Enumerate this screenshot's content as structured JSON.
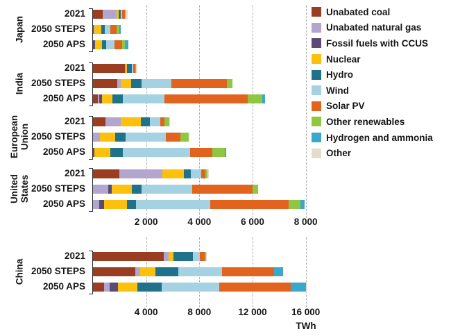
{
  "legend": {
    "items": [
      {
        "key": "coal",
        "label": "Unabated coal",
        "color": "#9b3d20"
      },
      {
        "key": "gas",
        "label": "Unabated natural gas",
        "color": "#b3a6ce"
      },
      {
        "key": "ccus",
        "label": "Fossil fuels with CCUS",
        "color": "#5b4a78"
      },
      {
        "key": "nuclear",
        "label": "Nuclear",
        "color": "#fcc00d"
      },
      {
        "key": "hydro",
        "label": "Hydro",
        "color": "#1f7289"
      },
      {
        "key": "wind",
        "label": "Wind",
        "color": "#a5d2e2"
      },
      {
        "key": "solar",
        "label": "Solar PV",
        "color": "#e2631e"
      },
      {
        "key": "other_renewables",
        "label": "Other renewables",
        "color": "#90c742"
      },
      {
        "key": "hydrogen",
        "label": "Hydrogen and ammonia",
        "color": "#3aa7cb"
      },
      {
        "key": "other",
        "label": "Other",
        "color": "#e2decb"
      }
    ]
  },
  "chart_data": {
    "type": "bar",
    "stacked": true,
    "orientation": "horizontal",
    "unit": "TWh",
    "series_order": [
      "coal",
      "gas",
      "ccus",
      "nuclear",
      "hydro",
      "wind",
      "solar",
      "other_renewables",
      "hydrogen",
      "other"
    ],
    "panels": [
      {
        "id": "top",
        "xlim": [
          0,
          8400
        ],
        "ticks": [
          2000,
          4000,
          6000,
          8000
        ],
        "tick_labels": [
          "2 000",
          "4 000",
          "6 000",
          "8 000"
        ],
        "grid": "dotted",
        "groups": [
          {
            "region": "Japan",
            "region_label": "Japan",
            "rows": [
              {
                "scenario": "2021",
                "values": {
                  "coal": 360,
                  "gas": 520,
                  "ccus": 0,
                  "nuclear": 80,
                  "hydro": 80,
                  "wind": 50,
                  "solar": 100,
                  "other_renewables": 50,
                  "hydrogen": 0,
                  "other": 60
                }
              },
              {
                "scenario": "2050 STEPS",
                "values": {
                  "coal": 30,
                  "gas": 30,
                  "ccus": 0,
                  "nuclear": 260,
                  "hydro": 130,
                  "wind": 210,
                  "solar": 230,
                  "other_renewables": 90,
                  "hydrogen": 60,
                  "other": 0
                }
              },
              {
                "scenario": "2050 APS",
                "values": {
                  "coal": 0,
                  "gas": 0,
                  "ccus": 80,
                  "nuclear": 260,
                  "hydro": 150,
                  "wind": 320,
                  "solar": 280,
                  "other_renewables": 120,
                  "hydrogen": 130,
                  "other": 0
                }
              }
            ]
          },
          {
            "region": "India",
            "region_label": "India",
            "rows": [
              {
                "scenario": "2021",
                "values": {
                  "coal": 1210,
                  "gas": 35,
                  "ccus": 0,
                  "nuclear": 45,
                  "hydro": 160,
                  "wind": 60,
                  "solar": 70,
                  "other_renewables": 40,
                  "hydrogen": 0,
                  "other": 50
                }
              },
              {
                "scenario": "2050 STEPS",
                "values": {
                  "coal": 920,
                  "gas": 130,
                  "ccus": 0,
                  "nuclear": 390,
                  "hydro": 390,
                  "wind": 1120,
                  "solar": 2090,
                  "other_renewables": 200,
                  "hydrogen": 0,
                  "other": 0
                }
              },
              {
                "scenario": "2050 APS",
                "values": {
                  "coal": 180,
                  "gas": 50,
                  "ccus": 100,
                  "nuclear": 390,
                  "hydro": 390,
                  "wind": 1570,
                  "solar": 3130,
                  "other_renewables": 560,
                  "hydrogen": 90,
                  "other": 0
                }
              }
            ]
          },
          {
            "region": "European Union",
            "region_label": "European\nUnion",
            "rows": [
              {
                "scenario": "2021",
                "values": {
                  "coal": 480,
                  "gas": 570,
                  "ccus": 0,
                  "nuclear": 740,
                  "hydro": 345,
                  "wind": 390,
                  "solar": 165,
                  "other_renewables": 180,
                  "hydrogen": 0,
                  "other": 40
                }
              },
              {
                "scenario": "2050 STEPS",
                "values": {
                  "coal": 0,
                  "gas": 270,
                  "ccus": 0,
                  "nuclear": 570,
                  "hydro": 390,
                  "wind": 1510,
                  "solar": 560,
                  "other_renewables": 310,
                  "hydrogen": 0,
                  "other": 0
                }
              },
              {
                "scenario": "2050 APS",
                "values": {
                  "coal": 0,
                  "gas": 0,
                  "ccus": 50,
                  "nuclear": 610,
                  "hydro": 470,
                  "wind": 2520,
                  "solar": 840,
                  "other_renewables": 460,
                  "hydrogen": 50,
                  "other": 0
                }
              }
            ]
          },
          {
            "region": "United States",
            "region_label": "United\nStates",
            "rows": [
              {
                "scenario": "2021",
                "values": {
                  "coal": 990,
                  "gas": 1610,
                  "ccus": 0,
                  "nuclear": 830,
                  "hydro": 260,
                  "wind": 370,
                  "solar": 160,
                  "other_renewables": 80,
                  "hydrogen": 0,
                  "other": 50
                }
              },
              {
                "scenario": "2050 STEPS",
                "values": {
                  "coal": 0,
                  "gas": 580,
                  "ccus": 130,
                  "nuclear": 740,
                  "hydro": 390,
                  "wind": 1900,
                  "solar": 2270,
                  "other_renewables": 210,
                  "hydrogen": 0,
                  "other": 0
                }
              },
              {
                "scenario": "2050 APS",
                "values": {
                  "coal": 0,
                  "gas": 230,
                  "ccus": 180,
                  "nuclear": 880,
                  "hydro": 340,
                  "wind": 2780,
                  "solar": 2940,
                  "other_renewables": 460,
                  "hydrogen": 140,
                  "other": 0
                }
              }
            ]
          }
        ]
      },
      {
        "id": "bottom",
        "xlim": [
          0,
          16800
        ],
        "ticks": [
          4000,
          8000,
          12000,
          16000
        ],
        "tick_labels": [
          "4 000",
          "8 000",
          "12 000",
          "16 000"
        ],
        "grid": "dotted",
        "groups": [
          {
            "region": "China",
            "region_label": "China",
            "rows": [
              {
                "scenario": "2021",
                "values": {
                  "coal": 5320,
                  "gas": 350,
                  "ccus": 0,
                  "nuclear": 360,
                  "hydro": 1460,
                  "wind": 570,
                  "solar": 360,
                  "other_renewables": 80,
                  "hydrogen": 0,
                  "other": 60
                }
              },
              {
                "scenario": "2050 STEPS",
                "values": {
                  "coal": 3170,
                  "gas": 360,
                  "ccus": 0,
                  "nuclear": 1190,
                  "hydro": 1720,
                  "wind": 3270,
                  "solar": 3900,
                  "other_renewables": 0,
                  "hydrogen": 690,
                  "other": 0
                }
              },
              {
                "scenario": "2050 APS",
                "values": {
                  "coal": 820,
                  "gas": 430,
                  "ccus": 610,
                  "nuclear": 1470,
                  "hydro": 1820,
                  "wind": 4330,
                  "solar": 5390,
                  "other_renewables": 0,
                  "hydrogen": 1130,
                  "other": 100
                }
              }
            ]
          }
        ]
      }
    ]
  }
}
